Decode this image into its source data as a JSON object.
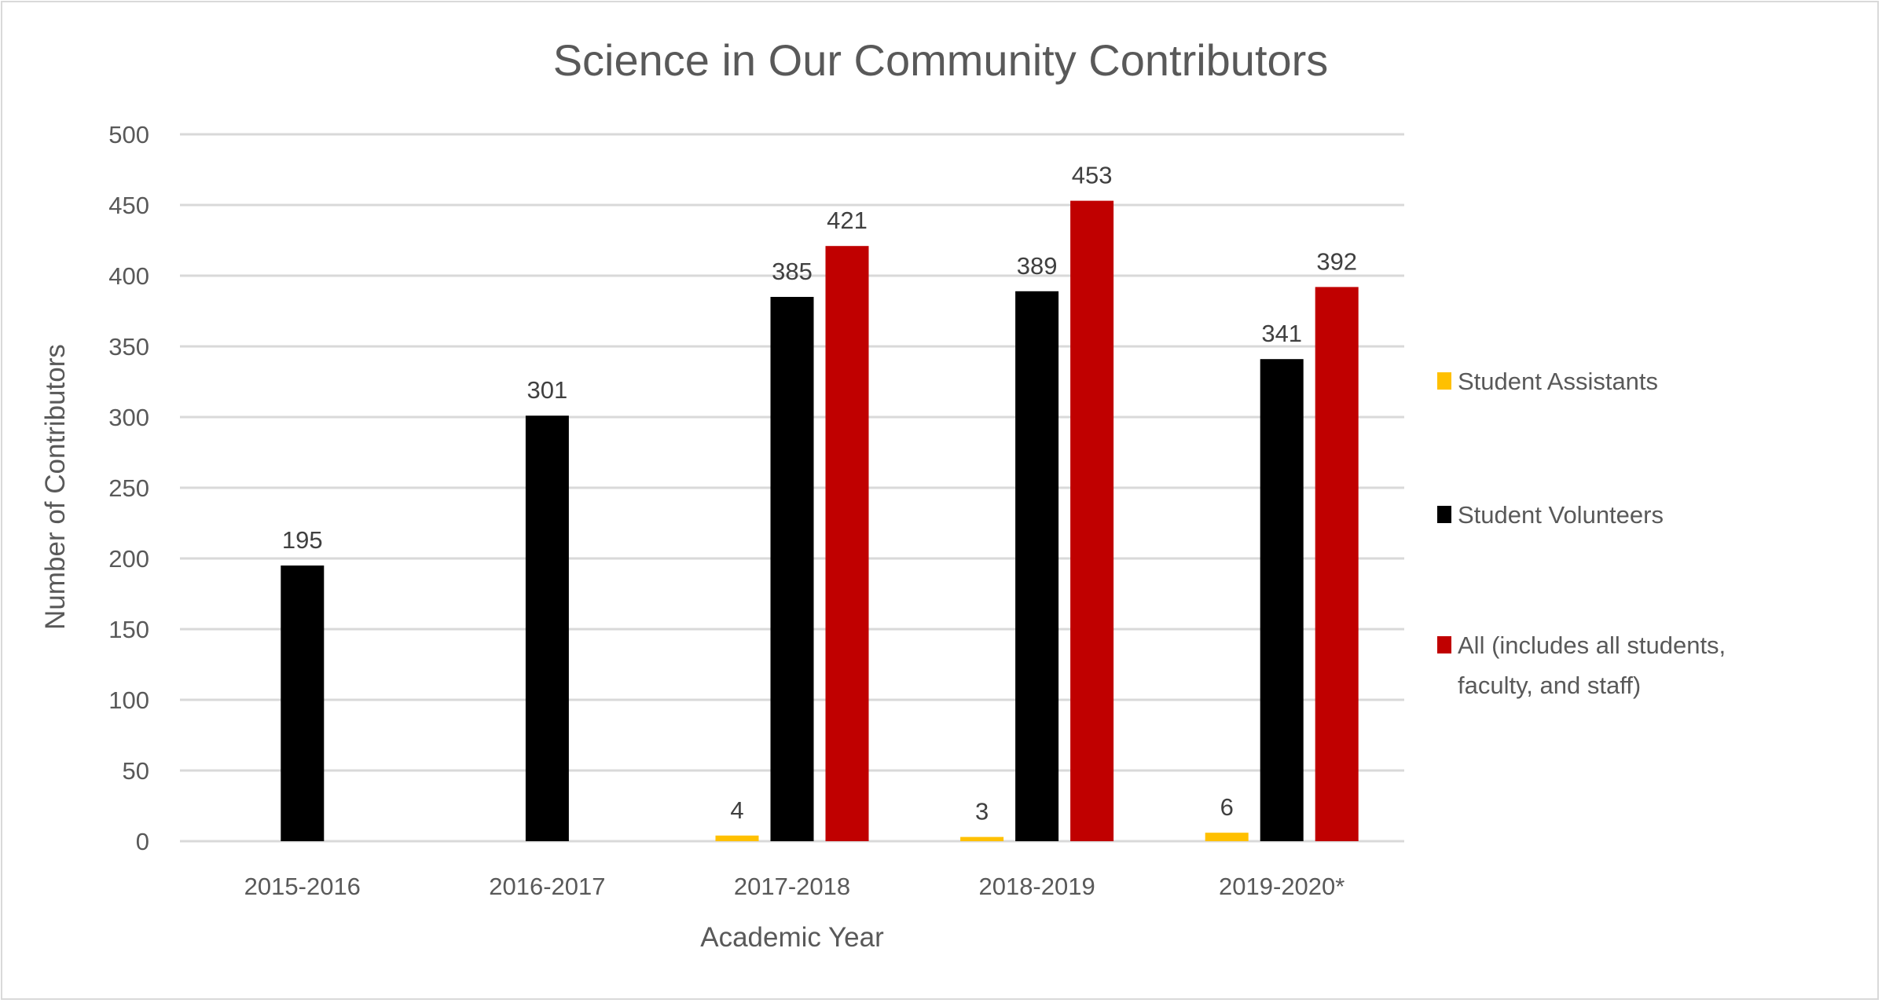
{
  "chart_data": {
    "type": "bar",
    "title": "Science in Our Community Contributors",
    "xlabel": "Academic Year",
    "ylabel": "Number of Contributors",
    "categories": [
      "2015-2016",
      "2016-2017",
      "2017-2018",
      "2018-2019",
      "2019-2020*"
    ],
    "ylim": [
      0,
      500
    ],
    "yticks": [
      0,
      50,
      100,
      150,
      200,
      250,
      300,
      350,
      400,
      450,
      500
    ],
    "grid": true,
    "legend_position": "right",
    "data_labels": true,
    "series": [
      {
        "name": "Student Assistants",
        "color": "#FFC000",
        "values": [
          null,
          null,
          4,
          3,
          6
        ]
      },
      {
        "name": "Student Volunteers",
        "color": "#000000",
        "values": [
          195,
          301,
          385,
          389,
          341
        ]
      },
      {
        "name": "All (includes all students, faculty, and staff)",
        "legend_lines": [
          "All (includes all students,",
          "faculty, and staff)"
        ],
        "color": "#C00000",
        "values": [
          null,
          null,
          421,
          453,
          392
        ]
      }
    ]
  }
}
